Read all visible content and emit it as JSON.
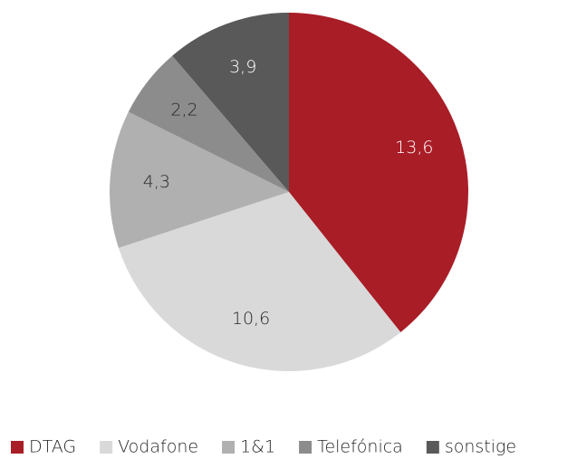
{
  "chart_data": {
    "type": "pie",
    "categories": [
      "DTAG",
      "Vodafone",
      "1&1",
      "Telefónica",
      "sonstige"
    ],
    "values": [
      13.6,
      10.6,
      4.3,
      2.2,
      3.9
    ],
    "value_labels": [
      "13,6",
      "10,6",
      "4,3",
      "2,2",
      "3,9"
    ],
    "colors": [
      "#a91d27",
      "#d9d9d9",
      "#b0b0b0",
      "#8c8c8c",
      "#595959"
    ],
    "label_colors": [
      "#ffffff",
      "#262626",
      "#262626",
      "#262626",
      "#ffffff"
    ],
    "legend": "bottom"
  }
}
